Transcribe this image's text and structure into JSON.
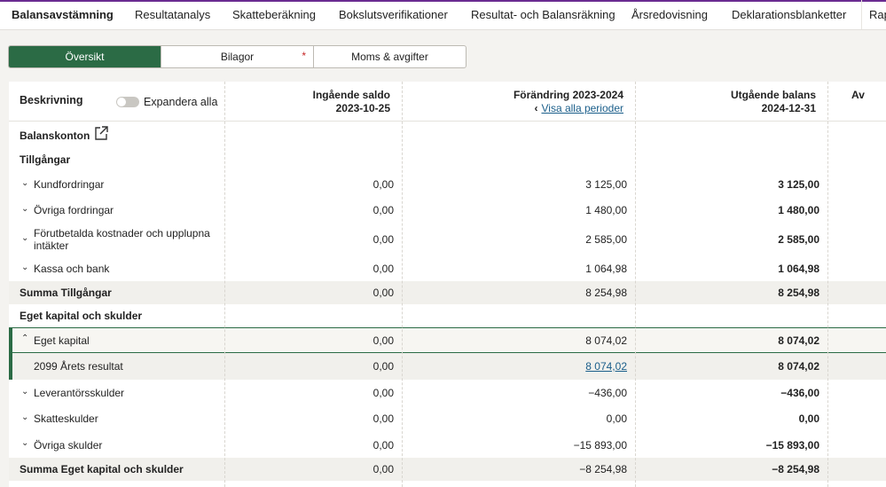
{
  "nav": {
    "tabs": [
      {
        "label": "Balansavstämning",
        "active": true
      },
      {
        "label": "Resultatanalys"
      },
      {
        "label": "Skatteberäkning"
      },
      {
        "label": "Bokslutsverifikationer"
      },
      {
        "label": "Resultat- och Balansräkning"
      },
      {
        "label": "Årsredovisning"
      },
      {
        "label": "Deklarationsblanketter"
      },
      {
        "label": "Rap"
      }
    ]
  },
  "segments": [
    {
      "label": "Översikt",
      "active": true
    },
    {
      "label": "Bilagor",
      "marker": "*"
    },
    {
      "label": "Moms & avgifter"
    }
  ],
  "table": {
    "header": {
      "description": "Beskrivning",
      "expand_all": "Expandera alla",
      "opening": {
        "line1": "Ingående saldo",
        "line2": "2023-10-25"
      },
      "change": {
        "line1": "Förändring 2023-2024",
        "link": "Visa alla perioder"
      },
      "closing": {
        "line1": "Utgående balans",
        "line2": "2024-12-31"
      },
      "cut": "Av"
    },
    "balance_accounts": "Balanskonton",
    "assets_title": "Tillgångar",
    "assets": [
      {
        "label": "Kundfordringar",
        "opening": "0,00",
        "change": "3 125,00",
        "closing": "3 125,00"
      },
      {
        "label": "Övriga fordringar",
        "opening": "0,00",
        "change": "1 480,00",
        "closing": "1 480,00"
      },
      {
        "label": "Förutbetalda kostnader och upplupna intäkter",
        "opening": "0,00",
        "change": "2 585,00",
        "closing": "2 585,00"
      },
      {
        "label": "Kassa och bank",
        "opening": "0,00",
        "change": "1 064,98",
        "closing": "1 064,98"
      }
    ],
    "assets_sum": {
      "label": "Summa Tillgångar",
      "opening": "0,00",
      "change": "8 254,98",
      "closing": "8 254,98"
    },
    "liab_title": "Eget kapital och skulder",
    "equity": {
      "label": "Eget kapital",
      "opening": "0,00",
      "change": "8 074,02",
      "closing": "8 074,02"
    },
    "equity_sub": {
      "label": "2099 Årets resultat",
      "opening": "0,00",
      "change": "8 074,02",
      "closing": "8 074,02"
    },
    "liabilities": [
      {
        "label": "Leverantörsskulder",
        "opening": "0,00",
        "change": "−436,00",
        "closing": "−436,00"
      },
      {
        "label": "Skatteskulder",
        "opening": "0,00",
        "change": "0,00",
        "closing": "0,00"
      },
      {
        "label": "Övriga skulder",
        "opening": "0,00",
        "change": "−15 893,00",
        "closing": "−15 893,00"
      }
    ],
    "liab_sum": {
      "label": "Summa Eget kapital och skulder",
      "opening": "0,00",
      "change": "−8 254,98",
      "closing": "−8 254,98"
    }
  }
}
